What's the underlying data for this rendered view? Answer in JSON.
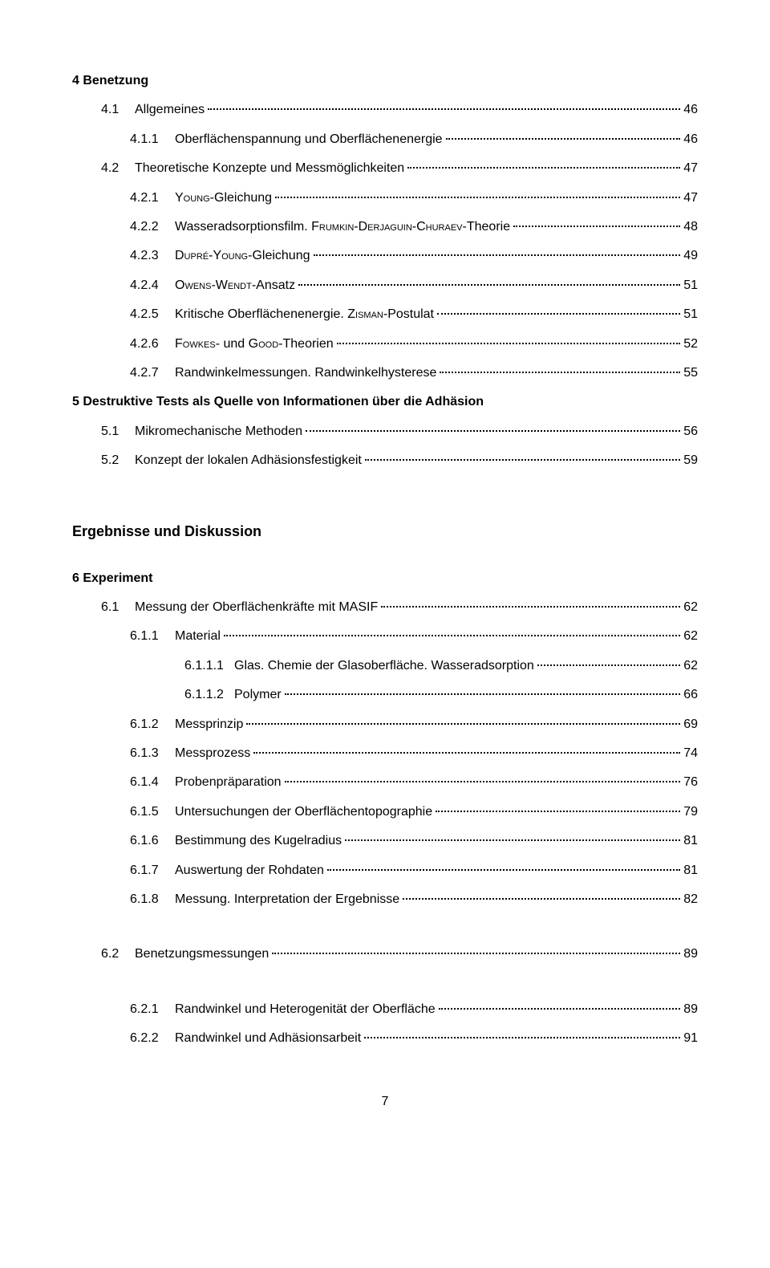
{
  "s4": {
    "title": "4  Benetzung",
    "items": [
      {
        "lvl": 1,
        "num": "4.1",
        "text": "Allgemeines",
        "page": "46"
      },
      {
        "lvl": 2,
        "num": "4.1.1",
        "text": "Oberflächenspannung und Oberflächenenergie",
        "page": "46"
      },
      {
        "lvl": 1,
        "num": "4.2",
        "text": "Theoretische Konzepte und Messmöglichkeiten",
        "page": "47"
      },
      {
        "lvl": 2,
        "num": "4.2.1",
        "sc": "Young",
        "suffix": "-Gleichung",
        "page": "47"
      },
      {
        "lvl": 2,
        "num": "4.2.2",
        "text_pre": "Wasseradsorptionsfilm. ",
        "sc": "Frumkin-Derjaguin-Churaev",
        "suffix": "-Theorie",
        "page": "48"
      },
      {
        "lvl": 2,
        "num": "4.2.3",
        "sc": "Dupré-Young",
        "suffix": "-Gleichung",
        "page": "49"
      },
      {
        "lvl": 2,
        "num": "4.2.4",
        "sc": "Owens-Wendt",
        "suffix": "-Ansatz",
        "page": "51"
      },
      {
        "lvl": 2,
        "num": "4.2.5",
        "text_pre": "Kritische Oberflächenenergie. ",
        "sc": "Zisman",
        "suffix": "-Postulat",
        "page": "51"
      },
      {
        "lvl": 2,
        "num": "4.2.6",
        "sc": "Fowkes",
        "mid": "- und ",
        "sc2": "Good",
        "suffix": "-Theorien",
        "page": "52"
      },
      {
        "lvl": 2,
        "num": "4.2.7",
        "text": "Randwinkelmessungen. Randwinkelhysterese",
        "page": "55"
      }
    ]
  },
  "s5": {
    "title": "5  Destruktive Tests als Quelle von Informationen über die Adhäsion",
    "items": [
      {
        "lvl": 1,
        "num": "5.1",
        "text": "Mikromechanische Methoden",
        "page": "56"
      },
      {
        "lvl": 1,
        "num": "5.2",
        "text": "Konzept der lokalen Adhäsionsfestigkeit",
        "page": "59"
      }
    ]
  },
  "results_heading": "Ergebnisse und Diskussion",
  "s6": {
    "title": "6  Experiment",
    "items": [
      {
        "lvl": 1,
        "num": "6.1",
        "text": "Messung der Oberflächenkräfte mit MASIF",
        "page": "62"
      },
      {
        "lvl": 2,
        "num": "6.1.1",
        "text": "Material",
        "page": "62"
      },
      {
        "lvl": 3,
        "num": "6.1.1.1",
        "text": "Glas. Chemie der Glasoberfläche. Wasseradsorption",
        "page": "62"
      },
      {
        "lvl": 3,
        "num": "6.1.1.2",
        "text": "Polymer",
        "page": "66"
      },
      {
        "lvl": 2,
        "num": "6.1.2",
        "text": "Messprinzip",
        "page": "69"
      },
      {
        "lvl": 2,
        "num": "6.1.3",
        "text": "Messprozess",
        "page": "74"
      },
      {
        "lvl": 2,
        "num": "6.1.4",
        "text": "Probenpräparation",
        "page": "76"
      },
      {
        "lvl": 2,
        "num": "6.1.5",
        "text": "Untersuchungen der Oberflächentopographie",
        "page": "79"
      },
      {
        "lvl": 2,
        "num": "6.1.6",
        "text": "Bestimmung des Kugelradius",
        "page": "81"
      },
      {
        "lvl": 2,
        "num": "6.1.7",
        "text": "Auswertung der Rohdaten",
        "page": "81"
      },
      {
        "lvl": 2,
        "num": "6.1.8",
        "text": "Messung. Interpretation der Ergebnisse",
        "page": "82"
      }
    ]
  },
  "s62": {
    "row": {
      "lvl": 1,
      "num": "6.2",
      "text": "Benetzungsmessungen",
      "page": "89"
    },
    "items": [
      {
        "lvl": 2,
        "num": "6.2.1",
        "text": "Randwinkel und Heterogenität der Oberfläche",
        "page": "89"
      },
      {
        "lvl": 2,
        "num": "6.2.2",
        "text": "Randwinkel und Adhäsionsarbeit",
        "page": "91"
      }
    ]
  },
  "page_number": "7"
}
